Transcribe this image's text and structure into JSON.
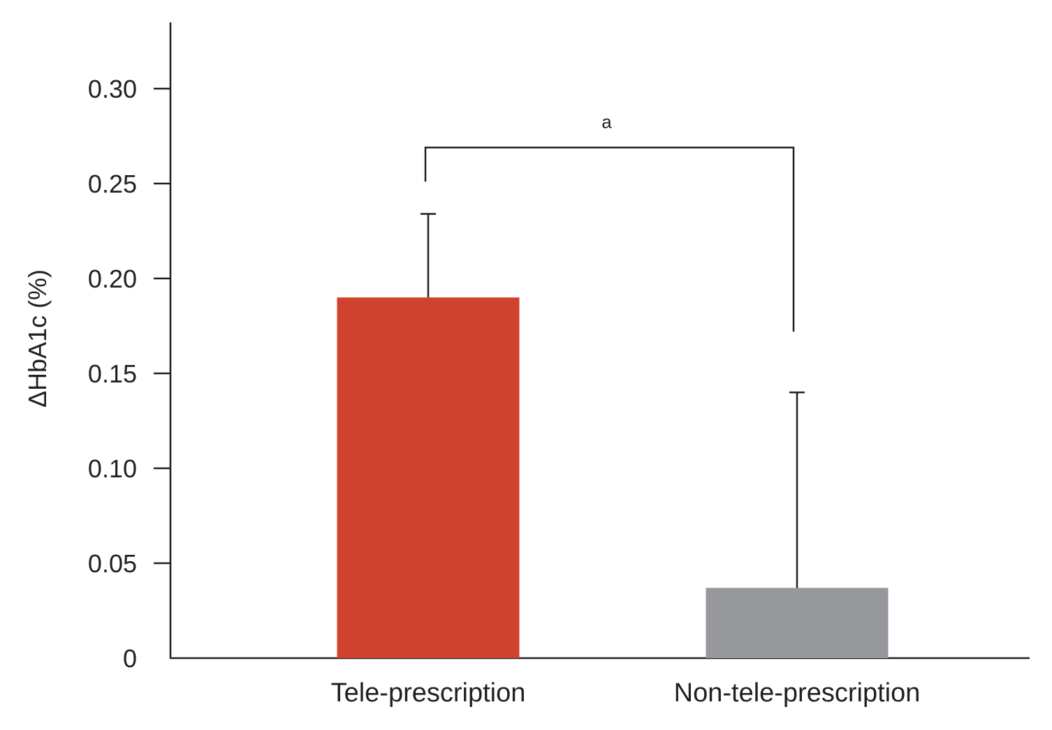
{
  "chart_data": {
    "type": "bar",
    "title": "",
    "xlabel": "",
    "ylabel": "ΔHbA1c (%)",
    "categories": [
      "Tele-prescription",
      "Non-tele-prescription"
    ],
    "values": [
      0.19,
      0.037
    ],
    "error_upper": [
      0.234,
      0.14
    ],
    "colors": [
      "#cf432e",
      "#97989b"
    ],
    "ylim": [
      0,
      0.335
    ],
    "yticks": [
      0,
      0.05,
      0.1,
      0.15,
      0.2,
      0.25,
      0.3
    ],
    "ytick_labels": [
      "0",
      "0.05",
      "0.10",
      "0.15",
      "0.20",
      "0.25",
      "0.30"
    ],
    "grid": false,
    "significance": {
      "label": "a",
      "from": "Tele-prescription",
      "to": "Non-tele-prescription",
      "bracket_value": 0.269,
      "left_leg_bottom": 0.251,
      "right_leg_bottom": 0.172
    }
  }
}
